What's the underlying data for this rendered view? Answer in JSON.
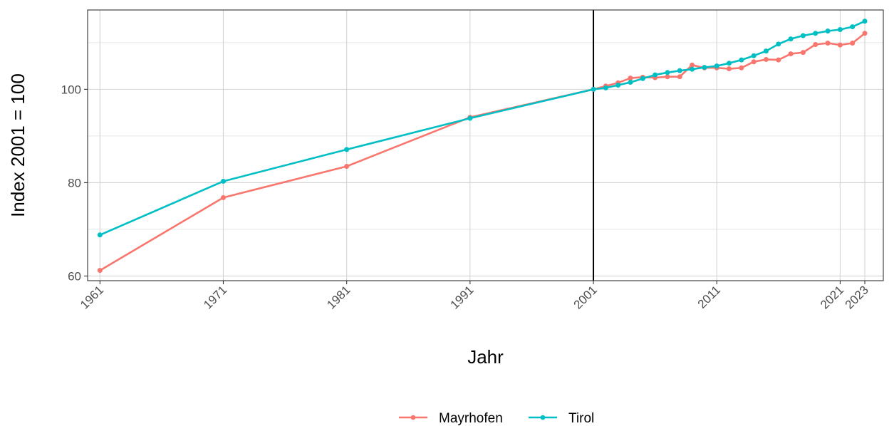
{
  "chart_data": {
    "type": "line",
    "xlabel": "Jahr",
    "ylabel": "Index 2001 = 100",
    "xlim": [
      1960,
      2024.5
    ],
    "ylim": [
      59,
      117
    ],
    "x_ticks": [
      1961,
      1971,
      1981,
      1991,
      2001,
      2011,
      2021,
      2023
    ],
    "y_ticks": [
      60,
      80,
      100
    ],
    "y_minor": [
      70,
      90,
      110
    ],
    "reference_line_x": 2001,
    "grid": true,
    "legend_position": "bottom",
    "series": [
      {
        "name": "Mayrhofen",
        "color": "#F8766D",
        "x": [
          1961,
          1971,
          1981,
          1991,
          2001,
          2002,
          2003,
          2004,
          2005,
          2006,
          2007,
          2008,
          2009,
          2010,
          2011,
          2012,
          2013,
          2014,
          2015,
          2016,
          2017,
          2018,
          2019,
          2020,
          2021,
          2022,
          2023
        ],
        "y": [
          61.2,
          76.8,
          83.5,
          94.0,
          100.0,
          100.7,
          101.4,
          102.4,
          102.6,
          102.5,
          102.7,
          102.7,
          105.2,
          104.6,
          104.6,
          104.4,
          104.6,
          105.9,
          106.4,
          106.3,
          107.6,
          107.9,
          109.6,
          109.9,
          109.5,
          109.9,
          112.0
        ]
      },
      {
        "name": "Tirol",
        "color": "#00BFC4",
        "x": [
          1961,
          1971,
          1981,
          1991,
          2001,
          2002,
          2003,
          2004,
          2005,
          2006,
          2007,
          2008,
          2009,
          2010,
          2011,
          2012,
          2013,
          2014,
          2015,
          2016,
          2017,
          2018,
          2019,
          2020,
          2021,
          2022,
          2023
        ],
        "y": [
          68.8,
          80.3,
          87.1,
          93.8,
          100.0,
          100.3,
          100.9,
          101.5,
          102.3,
          103.1,
          103.6,
          104.0,
          104.3,
          104.7,
          105.0,
          105.6,
          106.3,
          107.2,
          108.2,
          109.7,
          110.8,
          111.5,
          112.0,
          112.5,
          112.8,
          113.4,
          114.6
        ]
      }
    ]
  }
}
